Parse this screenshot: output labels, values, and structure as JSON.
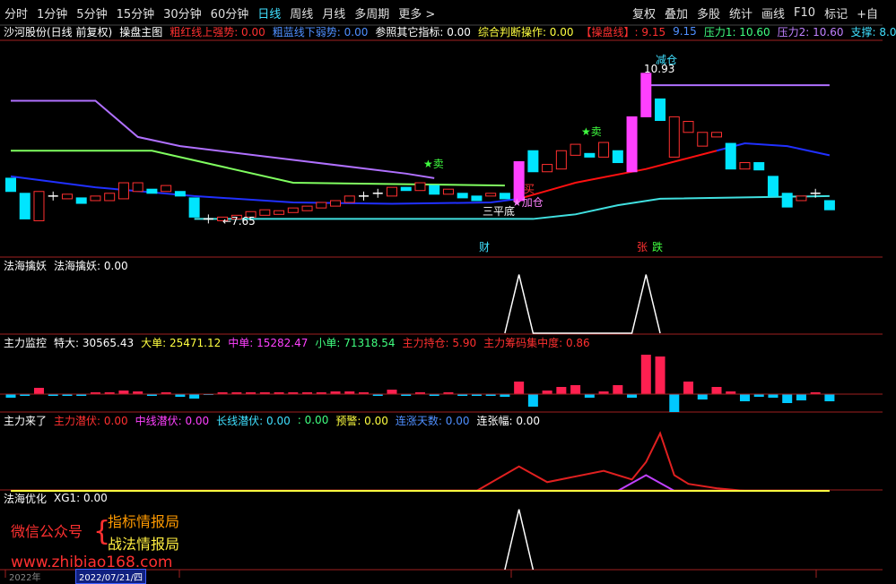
{
  "toolbar": {
    "left": [
      "分时",
      "1分钟",
      "5分钟",
      "15分钟",
      "30分钟",
      "60分钟",
      "日线",
      "周线",
      "月线",
      "多周期",
      "更多 >"
    ],
    "active": 6,
    "right": [
      "复权",
      "叠加",
      "多股",
      "统计",
      "画线",
      "F10",
      "标记",
      "+自"
    ]
  },
  "main": {
    "header": [
      {
        "text": "沙河股份(日线 前复权)",
        "color": "#ffffff"
      },
      {
        "text": "操盘主图",
        "color": "#ffffff"
      },
      {
        "text": "粗红线上强势: 0.00",
        "color": "#ff3030"
      },
      {
        "text": "粗蓝线下弱势: 0.00",
        "color": "#4f8fff"
      },
      {
        "text": "参照其它指标: 0.00",
        "color": "#ffffff"
      },
      {
        "text": "综合判断操作: 0.00",
        "color": "#ffff40"
      },
      {
        "text": "【操盘线】: 9.15",
        "color": "#ff3030"
      },
      {
        "text": "9.15",
        "color": "#4f8fff"
      },
      {
        "text": "压力1: 10.60",
        "color": "#40ff80"
      },
      {
        "text": "压力2: 10.60",
        "color": "#c080ff"
      },
      {
        "text": "支撑: 8.0",
        "color": "#40e0ff"
      }
    ],
    "ylim": [
      7.25,
      11.65
    ],
    "candles": {
      "open": [
        8.64,
        8.31,
        7.71,
        8.25,
        8.19,
        8.21,
        8.15,
        8.15,
        8.19,
        8.35,
        8.4,
        8.35,
        8.35,
        8.21,
        7.75,
        7.71,
        7.75,
        7.79,
        7.83,
        7.85,
        7.89,
        7.93,
        7.99,
        8.03,
        8.11,
        8.25,
        8.31,
        8.25,
        8.44,
        8.37,
        8.48,
        8.29,
        8.31,
        8.25,
        8.25,
        8.31,
        8.15,
        9.24,
        8.78,
        8.84,
        9.14,
        9.18,
        9.1,
        9.24,
        8.78,
        9.98,
        10.37,
        9.1,
        9.64,
        9.34,
        9.54,
        9.4,
        8.84,
        8.98,
        8.68,
        8.31,
        8.15,
        8.31,
        8.15
      ],
      "close": [
        8.35,
        7.75,
        8.35,
        8.25,
        8.29,
        8.09,
        8.25,
        8.31,
        8.54,
        8.54,
        8.31,
        8.48,
        8.25,
        7.79,
        7.75,
        7.79,
        7.83,
        7.91,
        7.95,
        7.93,
        7.99,
        8.03,
        8.11,
        8.15,
        8.25,
        8.25,
        8.31,
        8.44,
        8.37,
        8.54,
        8.29,
        8.4,
        8.21,
        8.15,
        8.31,
        8.19,
        9.0,
        8.78,
        8.94,
        9.24,
        9.38,
        9.1,
        9.42,
        8.98,
        9.98,
        10.93,
        9.9,
        9.98,
        9.88,
        9.64,
        9.64,
        8.84,
        8.98,
        8.82,
        8.25,
        8.01,
        8.25,
        8.31,
        7.95
      ],
      "up_color": "#ff3030",
      "down_color": "#00e5ff",
      "limit_up_color": "#ff40ff",
      "limit_up_index": [
        36,
        44,
        45
      ]
    },
    "lines": [
      {
        "color": "#2030ff",
        "x": [
          0,
          6,
          13,
          20,
          27,
          34,
          36
        ],
        "values": [
          8.68,
          8.44,
          8.25,
          8.11,
          8.08,
          8.11,
          8.19
        ]
      },
      {
        "color": "#ff1010",
        "x": [
          36,
          40,
          45,
          50
        ],
        "values": [
          8.19,
          8.54,
          8.84,
          9.24
        ]
      },
      {
        "color": "#2030ff",
        "x": [
          50,
          52,
          55,
          58
        ],
        "values": [
          9.24,
          9.4,
          9.34,
          9.14
        ]
      },
      {
        "color": "#b070ff",
        "x": [
          0,
          6,
          9,
          12,
          20,
          28,
          30
        ],
        "values": [
          10.33,
          10.33,
          9.54,
          9.34,
          9.04,
          8.74,
          8.64
        ]
      },
      {
        "color": "#b070ff",
        "x": [
          45,
          58
        ],
        "values": [
          10.67,
          10.67
        ]
      },
      {
        "color": "#80ff60",
        "x": [
          0,
          10,
          20,
          35
        ],
        "values": [
          9.24,
          9.24,
          8.54,
          8.48
        ]
      },
      {
        "color": "#40e0e0",
        "x": [
          13,
          37,
          40,
          43,
          46,
          58
        ],
        "values": [
          7.75,
          7.75,
          7.85,
          8.05,
          8.19,
          8.25
        ]
      }
    ],
    "annotations": [
      {
        "text": "★卖",
        "color": "#40ff40"
      },
      {
        "text": "★卖",
        "color": "#40ff40"
      },
      {
        "text": "←7.65",
        "color": "#ffffff"
      },
      {
        "text": "10.93",
        "color": "#ffffff"
      },
      {
        "text": "减仓",
        "color": "#40e0ff"
      },
      {
        "text": "三平底",
        "color": "#ffffff"
      },
      {
        "text": "★加仓",
        "color": "#ff80ff"
      },
      {
        "text": "买",
        "color": "#ff3030"
      },
      {
        "text": "财",
        "color": "#40e0ff"
      },
      {
        "text": "张",
        "color": "#ff3030"
      },
      {
        "text": "跌",
        "color": "#40ff40"
      }
    ]
  },
  "panel2": {
    "header": [
      {
        "text": "法海擒妖",
        "color": "#ffffff"
      },
      {
        "text": "法海擒妖: 0.00",
        "color": "#ffffff"
      }
    ],
    "ylim": [
      0,
      1.1
    ],
    "x": [
      35,
      36,
      37,
      44,
      45,
      46
    ],
    "values": [
      0,
      1,
      0,
      0,
      1,
      0
    ],
    "color": "#ffffff"
  },
  "panel3": {
    "header": [
      {
        "text": "主力监控",
        "color": "#ffffff"
      },
      {
        "text": "特大: 30565.43",
        "color": "#ffffff"
      },
      {
        "text": "大单: 25471.12",
        "color": "#ffff40"
      },
      {
        "text": "中单: 15282.47",
        "color": "#ff40ff"
      },
      {
        "text": "小单: 71318.54",
        "color": "#40ff80"
      },
      {
        "text": "主力持仓: 5.90",
        "color": "#ff3030"
      },
      {
        "text": "主力筹码集中度: 0.86",
        "color": "#ff3030"
      }
    ],
    "ylim": [
      -25,
      50
    ],
    "values": [
      -4,
      -2,
      7,
      -2,
      -2,
      -2,
      2,
      2,
      4,
      3,
      -2,
      2,
      -3,
      -5,
      -1,
      2,
      2,
      2,
      2,
      2,
      2,
      2,
      2,
      3,
      3,
      2,
      -2,
      5,
      -2,
      2,
      -2,
      2,
      -2,
      -2,
      -2,
      -3,
      14,
      -14,
      4,
      8,
      10,
      -4,
      3,
      10,
      -4,
      44,
      42,
      -20,
      14,
      -6,
      8,
      3,
      -8,
      -3,
      -4,
      -10,
      -7,
      2,
      -8
    ],
    "up_color": "#ff2050",
    "down_color": "#00c8ff"
  },
  "panel4": {
    "header": [
      {
        "text": "主力来了",
        "color": "#ffffff"
      },
      {
        "text": "主力潜伏: 0.00",
        "color": "#ff3030"
      },
      {
        "text": "中线潜伏: 0.00",
        "color": "#ff40ff"
      },
      {
        "text": "长线潜伏: 0.00",
        "color": "#40e0ff"
      },
      {
        "text": ": 0.00",
        "color": "#40ff80"
      },
      {
        "text": "预警: 0.00",
        "color": "#ffff40"
      },
      {
        "text": "连涨天数: 0.00",
        "color": "#4f8fff"
      },
      {
        "text": "连张幅: 0.00",
        "color": "#ffffff"
      }
    ],
    "ylim": [
      0,
      75
    ],
    "lines": [
      {
        "color": "#e02020",
        "x": [
          0,
          33,
          36,
          38,
          42,
          44,
          45,
          46,
          47,
          48,
          50,
          52,
          58
        ],
        "values": [
          0,
          0,
          28,
          10,
          23,
          13,
          33,
          66,
          18,
          8,
          3,
          0,
          0
        ]
      },
      {
        "color": "#c040ff",
        "x": [
          0,
          43,
          45,
          47,
          58
        ],
        "values": [
          0,
          0,
          18,
          0,
          0
        ]
      },
      {
        "color": "#ffff40",
        "x": [
          0,
          58
        ],
        "values": [
          0,
          0
        ]
      }
    ]
  },
  "panel5": {
    "header": [
      {
        "text": "法海优化",
        "color": "#ffffff"
      },
      {
        "text": "XG1: 0.00",
        "color": "#ffffff"
      }
    ],
    "ylim": [
      0,
      1.1
    ],
    "x": [
      35,
      36,
      37
    ],
    "values": [
      0,
      1,
      0
    ],
    "color": "#ffffff"
  },
  "watermark": {
    "line1": "微信公众号",
    "line2": "指标情报局",
    "line3": "战法情报局",
    "url": "www.zhibiao168.com"
  },
  "footer": {
    "year": "2022年",
    "date": "2022/07/21/四"
  }
}
